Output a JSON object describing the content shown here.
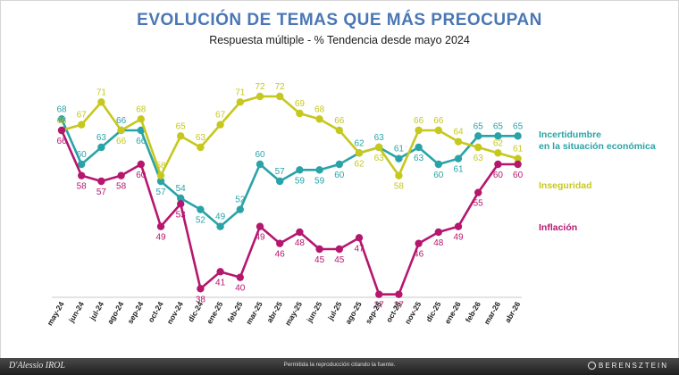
{
  "header": {
    "title": "EVOLUCIÓN DE TEMAS QUE MÁS PREOCUPAN",
    "subtitle": "Respuesta múltiple - % Tendencia desde mayo 2024"
  },
  "chart_data": {
    "type": "line",
    "x": [
      "may-24",
      "jun-24",
      "jul-24",
      "ago-24",
      "sep-24",
      "oct-24",
      "nov-24",
      "dic-24",
      "ene-25",
      "feb-25",
      "mar-25",
      "abr-25",
      "may-25",
      "jun-25",
      "jul-25",
      "ago-25",
      "sep-25",
      "oct-25",
      "nov-25",
      "dic-25",
      "ene-26",
      "feb-26",
      "mar-26",
      "abr-26"
    ],
    "ylim": [
      30,
      78
    ],
    "grid": false,
    "legend": "right",
    "series": [
      {
        "name": "Incertidumbre en la situación económica",
        "name_lines": [
          "Incertidumbre",
          "en la situación económica"
        ],
        "color": "#2aa3a8",
        "values": [
          68,
          60,
          63,
          66,
          66,
          57,
          54,
          52,
          49,
          52,
          60,
          57,
          59,
          59,
          60,
          62,
          63,
          61,
          63,
          60,
          61,
          65,
          65,
          65
        ]
      },
      {
        "name": "Inseguridad",
        "name_lines": [
          "Inseguridad"
        ],
        "color": "#c6c81e",
        "values": [
          66,
          67,
          71,
          66,
          68,
          58,
          65,
          63,
          67,
          71,
          72,
          72,
          69,
          68,
          66,
          62,
          63,
          58,
          66,
          66,
          64,
          63,
          62,
          61
        ]
      },
      {
        "name": "Inflación",
        "name_lines": [
          "Inflación"
        ],
        "color": "#b5176f",
        "values": [
          66,
          58,
          57,
          58,
          60,
          49,
          53,
          38,
          41,
          40,
          49,
          46,
          48,
          45,
          45,
          47,
          37,
          37,
          46,
          48,
          49,
          55,
          60,
          60
        ]
      }
    ]
  },
  "footer": {
    "note": "Permitida la reproducción citando la fuente.",
    "logo_left": "D'Alessio IROL",
    "logo_right": "BERENSZTEIN"
  }
}
